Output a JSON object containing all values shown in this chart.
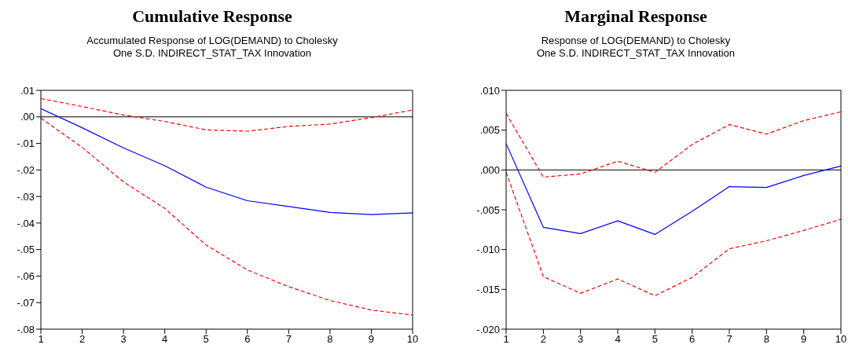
{
  "chart_data": [
    {
      "type": "line",
      "title": "Cumulative Response",
      "subtitle": "Accumulated Response of LOG(DEMAND) to Cholesky\nOne S.D. INDIRECT_STAT_TAX Innovation",
      "x": [
        1,
        2,
        3,
        4,
        5,
        6,
        7,
        8,
        9,
        10
      ],
      "xlim": [
        1,
        10
      ],
      "xticks": [
        1,
        2,
        3,
        4,
        5,
        6,
        7,
        8,
        9,
        10
      ],
      "ylim": [
        -0.08,
        0.01
      ],
      "yticks": [
        {
          "value": 0.01,
          "label": ".01"
        },
        {
          "value": 0,
          "label": ".00"
        },
        {
          "value": -0.01,
          "label": "-.01"
        },
        {
          "value": -0.02,
          "label": "-.02"
        },
        {
          "value": -0.03,
          "label": "-.03"
        },
        {
          "value": -0.04,
          "label": "-.04"
        },
        {
          "value": -0.05,
          "label": "-.05"
        },
        {
          "value": -0.06,
          "label": "-.06"
        },
        {
          "value": -0.07,
          "label": "-.07"
        },
        {
          "value": -0.08,
          "label": "-.08"
        }
      ],
      "series": [
        {
          "color": "#0000ff",
          "line_style": "solid",
          "values": [
            0.0031,
            -0.0041,
            -0.0117,
            -0.0184,
            -0.0265,
            -0.0316,
            -0.0338,
            -0.036,
            -0.0368,
            -0.0362
          ]
        },
        {
          "color": "#ff0000",
          "line_style": "dashed",
          "values": [
            0.0069,
            0.0039,
            0.0007,
            -0.0017,
            -0.0049,
            -0.0054,
            -0.0036,
            -0.0027,
            -0.0003,
            0.0026
          ]
        },
        {
          "color": "#ff0000",
          "line_style": "dashed",
          "values": [
            -0.0005,
            -0.0115,
            -0.0245,
            -0.0345,
            -0.0483,
            -0.0577,
            -0.064,
            -0.0692,
            -0.0728,
            -0.0747
          ]
        }
      ],
      "ref_lines": [
        {
          "axis": "y",
          "value": 0,
          "color": "#000000"
        }
      ]
    },
    {
      "type": "line",
      "title": "Marginal Response",
      "subtitle": "Response of LOG(DEMAND) to Cholesky\nOne S.D. INDIRECT_STAT_TAX Innovation",
      "x": [
        1,
        2,
        3,
        4,
        5,
        6,
        7,
        8,
        9,
        10
      ],
      "xlim": [
        1,
        10
      ],
      "xticks": [
        1,
        2,
        3,
        4,
        5,
        6,
        7,
        8,
        9,
        10
      ],
      "ylim": [
        -0.02,
        0.01
      ],
      "yticks": [
        {
          "value": 0.01,
          "label": ".010"
        },
        {
          "value": 0.005,
          "label": ".005"
        },
        {
          "value": 0,
          "label": ".000"
        },
        {
          "value": -0.005,
          "label": "-.005"
        },
        {
          "value": -0.01,
          "label": "-.010"
        },
        {
          "value": -0.015,
          "label": "-.015"
        },
        {
          "value": -0.02,
          "label": "-.020"
        }
      ],
      "series": [
        {
          "color": "#0000ff",
          "line_style": "solid",
          "values": [
            0.0033,
            -0.0072,
            -0.008,
            -0.0064,
            -0.0081,
            -0.0052,
            -0.0021,
            -0.0022,
            -0.0007,
            0.0005
          ]
        },
        {
          "color": "#ff0000",
          "line_style": "dashed",
          "values": [
            0.0071,
            -0.0009,
            -0.0005,
            0.0011,
            -0.0003,
            0.0032,
            0.0057,
            0.0045,
            0.0062,
            0.0073
          ]
        },
        {
          "color": "#ff0000",
          "line_style": "dashed",
          "values": [
            -0.0003,
            -0.0134,
            -0.0155,
            -0.0137,
            -0.0158,
            -0.0135,
            -0.0099,
            -0.0089,
            -0.0076,
            -0.0062
          ]
        }
      ],
      "ref_lines": [
        {
          "axis": "y",
          "value": 0,
          "color": "#000000"
        }
      ]
    }
  ]
}
